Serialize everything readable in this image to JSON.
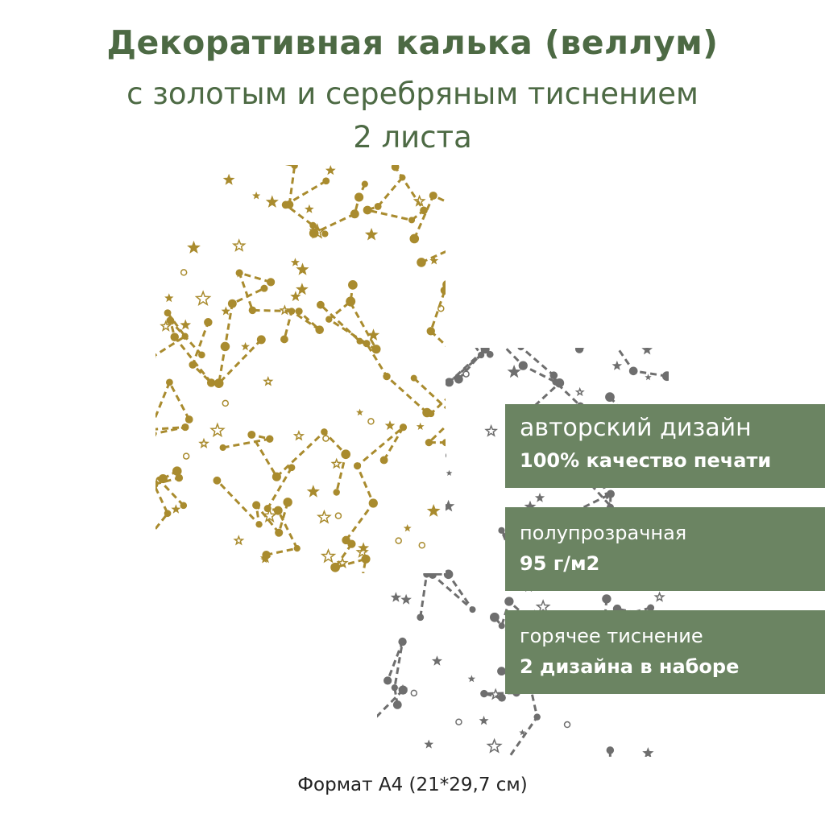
{
  "header": {
    "title": "Декоративная калька (веллум)",
    "subtitle": "с золотым и серебряным тиснением",
    "count": "2 листа"
  },
  "sheets": [
    {
      "name": "gold",
      "color": "#a98b2e"
    },
    {
      "name": "silver",
      "color": "#6e6e6e"
    }
  ],
  "banners": [
    {
      "line1": "авторский дизайн",
      "line2": "100% качество печати"
    },
    {
      "line1": "полупрозрачная",
      "line2": "95 г/м2"
    },
    {
      "line1": "горячее тиснение",
      "line2": "2 дизайна в наборе"
    }
  ],
  "banner_color": "#6b8462",
  "title_color": "#4d6a44",
  "footer": "Формат А4 (21*29,7 см)"
}
